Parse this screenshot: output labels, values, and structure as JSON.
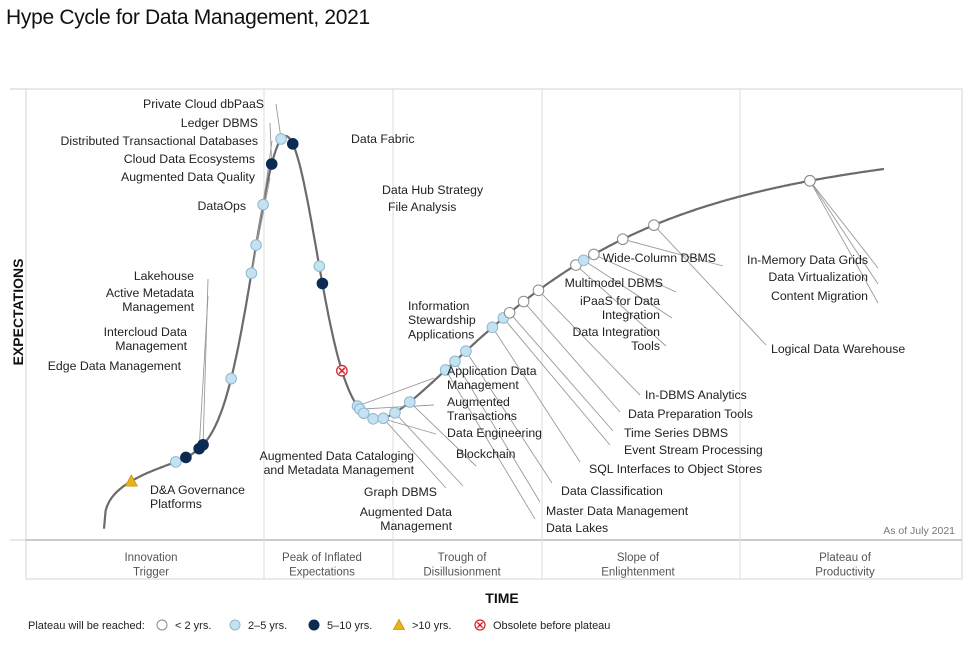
{
  "chart_data": {
    "type": "hype-cycle",
    "title": "Hype Cycle for Data Management, 2021",
    "xlabel": "TIME",
    "ylabel": "EXPECTATIONS",
    "as_of": "As of July 2021",
    "phases": [
      [
        "Innovation",
        "Trigger"
      ],
      [
        "Peak of Inflated",
        "Expectations"
      ],
      [
        "Trough of",
        "Disillusionment"
      ],
      [
        "Slope of",
        "Enlightenment"
      ],
      [
        "Plateau of",
        "Productivity"
      ]
    ],
    "legend_title": "Plateau will be reached:",
    "legend": [
      {
        "key": "lt2",
        "label": "< 2 yrs."
      },
      {
        "key": "2to5",
        "label": "2–5 yrs."
      },
      {
        "key": "5to10",
        "label": "5–10 yrs."
      },
      {
        "key": "gt10",
        "label": ">10 yrs."
      },
      {
        "key": "obsolete",
        "label": "Obsolete before plateau"
      }
    ],
    "colors": {
      "lt2": "#ffffff",
      "2to5": "#c4e2f2",
      "5to10": "#0d2a52",
      "gt10": "#e8b21a",
      "obsolete": "#d32027",
      "curve": "#6b6b6b"
    },
    "technologies": [
      {
        "name": "D&A Governance Platforms",
        "label_lines": [
          "D&A Governance",
          "Platforms"
        ],
        "position": 0.035,
        "category": "gt10"
      },
      {
        "name": "Edge Data Management",
        "label_lines": [
          "Edge Data Management"
        ],
        "position": 0.092,
        "category": "2to5"
      },
      {
        "name": "Intercloud Data Management",
        "label_lines": [
          "Intercloud Data",
          "Management"
        ],
        "position": 0.105,
        "category": "5to10"
      },
      {
        "name": "Active Metadata Management",
        "label_lines": [
          "Active Metadata",
          "Management"
        ],
        "position": 0.122,
        "category": "5to10"
      },
      {
        "name": "Lakehouse",
        "label_lines": [
          "Lakehouse"
        ],
        "position": 0.127,
        "category": "5to10"
      },
      {
        "name": "DataOps",
        "label_lines": [
          "DataOps"
        ],
        "position": 0.163,
        "category": "2to5"
      },
      {
        "name": "Augmented Data Quality",
        "label_lines": [
          "Augmented Data Quality"
        ],
        "position": 0.189,
        "category": "2to5"
      },
      {
        "name": "Cloud Data Ecosystems",
        "label_lines": [
          "Cloud Data Ecosystems"
        ],
        "position": 0.195,
        "category": "2to5"
      },
      {
        "name": "Distributed Transactional Databases",
        "label_lines": [
          "Distributed Transactional Databases"
        ],
        "position": 0.204,
        "category": "2to5"
      },
      {
        "name": "Ledger DBMS",
        "label_lines": [
          "Ledger DBMS"
        ],
        "position": 0.215,
        "category": "5to10"
      },
      {
        "name": "Private Cloud dbPaaS",
        "label_lines": [
          "Private Cloud dbPaaS"
        ],
        "position": 0.227,
        "category": "2to5"
      },
      {
        "name": "Data Fabric",
        "label_lines": [
          "Data Fabric"
        ],
        "position": 0.242,
        "category": "5to10"
      },
      {
        "name": "Data Hub Strategy",
        "label_lines": [
          "Data Hub Strategy"
        ],
        "position": 0.276,
        "category": "2to5"
      },
      {
        "name": "File Analysis",
        "label_lines": [
          "File Analysis"
        ],
        "position": 0.28,
        "category": "5to10"
      },
      {
        "name": "Information Stewardship Applications",
        "label_lines": [
          "Information",
          "Stewardship",
          "Applications"
        ],
        "position": 0.305,
        "category": "obsolete"
      },
      {
        "name": "Application Data Management",
        "label_lines": [
          "Application Data",
          "Management"
        ],
        "position": 0.325,
        "category": "2to5"
      },
      {
        "name": "Augmented Transactions",
        "label_lines": [
          "Augmented",
          "Transactions"
        ],
        "position": 0.328,
        "category": "2to5"
      },
      {
        "name": "Data Engineering",
        "label_lines": [
          "Data Engineering"
        ],
        "position": 0.333,
        "category": "2to5"
      },
      {
        "name": "Augmented Data Cataloging and Metadata Management",
        "label_lines": [
          "Augmented Data Cataloging",
          "and Metadata Management"
        ],
        "position": 0.345,
        "category": "2to5"
      },
      {
        "name": "Graph DBMS",
        "label_lines": [
          "Graph DBMS"
        ],
        "position": 0.358,
        "category": "2to5"
      },
      {
        "name": "Augmented Data Management",
        "label_lines": [
          "Augmented Data",
          "Management"
        ],
        "position": 0.373,
        "category": "2to5"
      },
      {
        "name": "Blockchain",
        "label_lines": [
          "Blockchain"
        ],
        "position": 0.392,
        "category": "2to5"
      },
      {
        "name": "Data Lakes",
        "label_lines": [
          "Data Lakes"
        ],
        "position": 0.438,
        "category": "2to5"
      },
      {
        "name": "Master Data Management",
        "label_lines": [
          "Master Data Management"
        ],
        "position": 0.45,
        "category": "2to5"
      },
      {
        "name": "Data Classification",
        "label_lines": [
          "Data Classification"
        ],
        "position": 0.464,
        "category": "2to5"
      },
      {
        "name": "SQL Interfaces to Object Stores",
        "label_lines": [
          "SQL Interfaces to Object Stores"
        ],
        "position": 0.498,
        "category": "2to5"
      },
      {
        "name": "Event Stream Processing",
        "label_lines": [
          "Event Stream Processing"
        ],
        "position": 0.512,
        "category": "2to5"
      },
      {
        "name": "Time Series DBMS",
        "label_lines": [
          "Time Series DBMS"
        ],
        "position": 0.52,
        "category": "lt2"
      },
      {
        "name": "Data Preparation Tools",
        "label_lines": [
          "Data Preparation Tools"
        ],
        "position": 0.538,
        "category": "lt2"
      },
      {
        "name": "In-DBMS Analytics",
        "label_lines": [
          "In-DBMS Analytics"
        ],
        "position": 0.557,
        "category": "lt2"
      },
      {
        "name": "Data Integration Tools",
        "label_lines": [
          "Data Integration",
          "Tools"
        ],
        "position": 0.605,
        "category": "lt2"
      },
      {
        "name": "iPaaS for Data Integration",
        "label_lines": [
          "iPaaS for Data",
          "Integration"
        ],
        "position": 0.615,
        "category": "2to5"
      },
      {
        "name": "Multimodel DBMS",
        "label_lines": [
          "Multimodel DBMS"
        ],
        "position": 0.628,
        "category": "lt2"
      },
      {
        "name": "Wide-Column DBMS",
        "label_lines": [
          "Wide-Column DBMS"
        ],
        "position": 0.665,
        "category": "lt2"
      },
      {
        "name": "Logical Data Warehouse",
        "label_lines": [
          "Logical Data Warehouse"
        ],
        "position": 0.705,
        "category": "lt2"
      },
      {
        "name": "In-Memory Data Grids",
        "label_lines": [
          "In-Memory Data Grids"
        ],
        "position": 0.905,
        "category": "lt2"
      },
      {
        "name": "Data Virtualization",
        "label_lines": [
          "Data Virtualization"
        ],
        "position": 0.905,
        "category": "lt2"
      },
      {
        "name": "Content Migration",
        "label_lines": [
          "Content Migration"
        ],
        "position": 0.905,
        "category": "lt2"
      }
    ]
  }
}
